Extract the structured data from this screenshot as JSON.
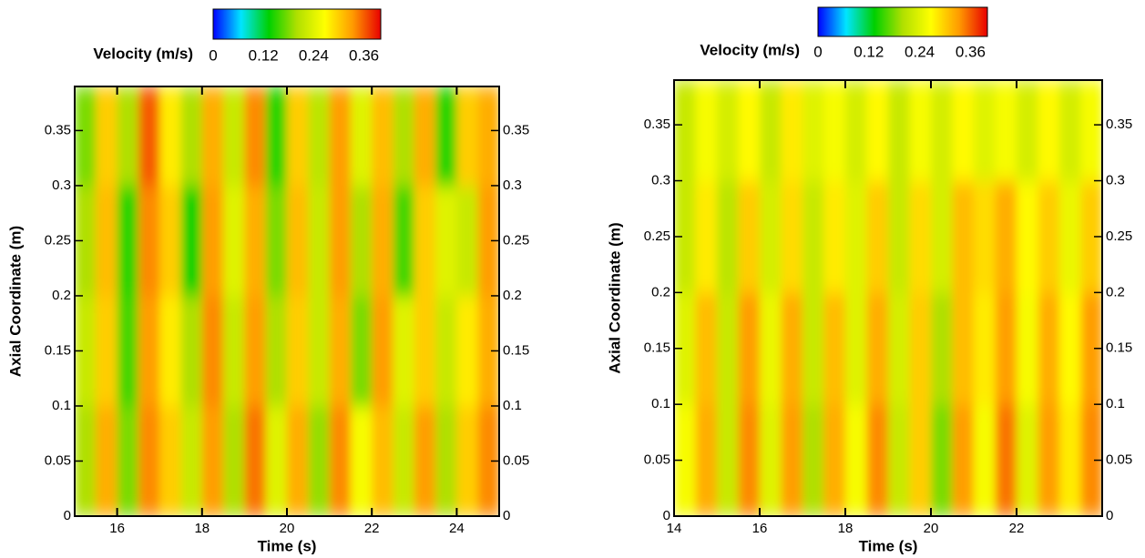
{
  "chart_data": [
    {
      "type": "heatmap",
      "colorbar_label": "Velocity (m/s)",
      "xlabel": "Time (s)",
      "ylabel": "Axial Coordinate (m)",
      "xlim": [
        15,
        25
      ],
      "xticks": [
        16,
        18,
        20,
        22,
        24
      ],
      "ylim": [
        0,
        0.39
      ],
      "yticks": [
        0,
        0.05,
        0.1,
        0.15,
        0.2,
        0.25,
        0.3,
        0.35
      ],
      "clim": [
        0,
        0.4
      ],
      "cticks": [
        0,
        0.12,
        0.24,
        0.36
      ],
      "colormap": [
        "#0000ff",
        "#00e5ff",
        "#00d000",
        "#b0e000",
        "#ffff00",
        "#ff9a00",
        "#e80000"
      ],
      "x": [
        15.25,
        15.75,
        16.25,
        16.75,
        17.25,
        17.75,
        18.25,
        18.75,
        19.25,
        19.75,
        20.25,
        20.75,
        21.25,
        21.75,
        22.25,
        22.75,
        23.25,
        23.75,
        24.25,
        24.75
      ],
      "y": [
        0.05,
        0.15,
        0.25,
        0.35
      ],
      "z": [
        [
          0.2,
          0.32,
          0.18,
          0.34,
          0.3,
          0.22,
          0.33,
          0.2,
          0.35,
          0.24,
          0.32,
          0.19,
          0.34,
          0.26,
          0.31,
          0.22,
          0.33,
          0.2,
          0.3,
          0.34
        ],
        [
          0.22,
          0.3,
          0.16,
          0.33,
          0.28,
          0.2,
          0.34,
          0.22,
          0.33,
          0.2,
          0.3,
          0.22,
          0.32,
          0.18,
          0.33,
          0.24,
          0.3,
          0.22,
          0.28,
          0.32
        ],
        [
          0.2,
          0.31,
          0.15,
          0.34,
          0.3,
          0.14,
          0.33,
          0.24,
          0.32,
          0.18,
          0.31,
          0.22,
          0.33,
          0.2,
          0.32,
          0.16,
          0.3,
          0.24,
          0.22,
          0.33
        ],
        [
          0.18,
          0.3,
          0.2,
          0.36,
          0.28,
          0.2,
          0.32,
          0.22,
          0.34,
          0.15,
          0.3,
          0.21,
          0.33,
          0.24,
          0.31,
          0.2,
          0.32,
          0.15,
          0.3,
          0.32
        ]
      ]
    },
    {
      "type": "heatmap",
      "colorbar_label": "Velocity (m/s)",
      "xlabel": "Time (s)",
      "ylabel": "Axial Coordinate (m)",
      "xlim": [
        14,
        24
      ],
      "xticks": [
        14,
        16,
        18,
        20,
        22
      ],
      "ylim": [
        0,
        0.39
      ],
      "yticks": [
        0,
        0.05,
        0.1,
        0.15,
        0.2,
        0.25,
        0.3,
        0.35
      ],
      "clim": [
        0,
        0.4
      ],
      "cticks": [
        0,
        0.12,
        0.24,
        0.36
      ],
      "colormap": [
        "#0000ff",
        "#00e5ff",
        "#00d000",
        "#b0e000",
        "#ffff00",
        "#ff9a00",
        "#e80000"
      ],
      "x": [
        14.25,
        14.75,
        15.25,
        15.75,
        16.25,
        16.75,
        17.25,
        17.75,
        18.25,
        18.75,
        19.25,
        19.75,
        20.25,
        20.75,
        21.25,
        21.75,
        22.25,
        22.75,
        23.25,
        23.75
      ],
      "y": [
        0.05,
        0.15,
        0.25,
        0.35
      ],
      "z": [
        [
          0.26,
          0.32,
          0.22,
          0.34,
          0.24,
          0.33,
          0.2,
          0.32,
          0.26,
          0.34,
          0.22,
          0.3,
          0.18,
          0.33,
          0.26,
          0.35,
          0.24,
          0.33,
          0.28,
          0.34
        ],
        [
          0.24,
          0.31,
          0.22,
          0.33,
          0.25,
          0.32,
          0.22,
          0.31,
          0.24,
          0.32,
          0.23,
          0.3,
          0.2,
          0.31,
          0.28,
          0.33,
          0.26,
          0.32,
          0.27,
          0.33
        ],
        [
          0.22,
          0.28,
          0.21,
          0.3,
          0.23,
          0.29,
          0.22,
          0.28,
          0.24,
          0.3,
          0.22,
          0.29,
          0.23,
          0.31,
          0.29,
          0.32,
          0.27,
          0.3,
          0.25,
          0.3
        ],
        [
          0.22,
          0.26,
          0.23,
          0.27,
          0.22,
          0.28,
          0.24,
          0.26,
          0.23,
          0.27,
          0.22,
          0.26,
          0.23,
          0.27,
          0.24,
          0.26,
          0.23,
          0.27,
          0.23,
          0.26
        ]
      ]
    }
  ]
}
